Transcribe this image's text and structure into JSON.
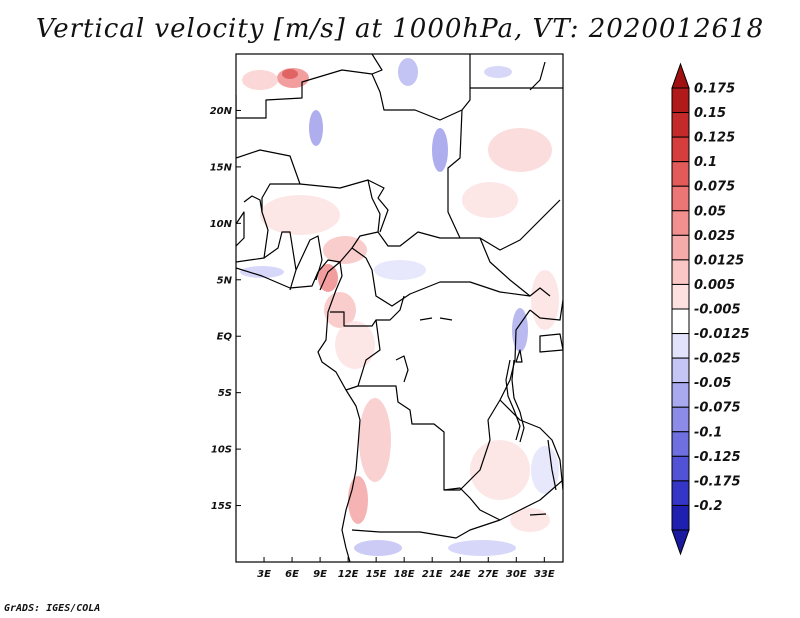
{
  "title": "Vertical velocity [m/s] at 1000hPa, VT: 2020012618",
  "footer": "GrADS: IGES/COLA",
  "map": {
    "lon_range": [
      0,
      35
    ],
    "lat_range": [
      -20,
      25
    ],
    "lat_ticks": [
      {
        "value": 20,
        "label": "20N"
      },
      {
        "value": 15,
        "label": "15N"
      },
      {
        "value": 10,
        "label": "10N"
      },
      {
        "value": 5,
        "label": "5N"
      },
      {
        "value": 0,
        "label": "EQ"
      },
      {
        "value": -5,
        "label": "5S"
      },
      {
        "value": -10,
        "label": "10S"
      },
      {
        "value": -15,
        "label": "15S"
      }
    ],
    "lon_ticks": [
      {
        "value": 3,
        "label": "3E"
      },
      {
        "value": 6,
        "label": "6E"
      },
      {
        "value": 9,
        "label": "9E"
      },
      {
        "value": 12,
        "label": "12E"
      },
      {
        "value": 15,
        "label": "15E"
      },
      {
        "value": 18,
        "label": "18E"
      },
      {
        "value": 21,
        "label": "21E"
      },
      {
        "value": 24,
        "label": "24E"
      },
      {
        "value": 27,
        "label": "27E"
      },
      {
        "value": 30,
        "label": "30E"
      },
      {
        "value": 33,
        "label": "33E"
      }
    ]
  },
  "colorbar": {
    "levels": [
      {
        "label": "0.175",
        "color": "#b11a1a"
      },
      {
        "label": "0.15",
        "color": "#c52a2a"
      },
      {
        "label": "0.125",
        "color": "#d63e3e"
      },
      {
        "label": "0.1",
        "color": "#e35a5a"
      },
      {
        "label": "0.075",
        "color": "#ec7575"
      },
      {
        "label": "0.05",
        "color": "#f29090"
      },
      {
        "label": "0.025",
        "color": "#f6abab"
      },
      {
        "label": "0.0125",
        "color": "#fac6c6"
      },
      {
        "label": "0.005",
        "color": "#fde0e0"
      },
      {
        "label": "-0.005",
        "color": "#ffffff"
      },
      {
        "label": "-0.0125",
        "color": "#e2e2fb"
      },
      {
        "label": "-0.025",
        "color": "#c6c6f6"
      },
      {
        "label": "-0.05",
        "color": "#a9a9f0"
      },
      {
        "label": "-0.075",
        "color": "#8c8ce8"
      },
      {
        "label": "-0.1",
        "color": "#6f6fe0"
      },
      {
        "label": "-0.125",
        "color": "#5252d6"
      },
      {
        "label": "-0.175",
        "color": "#3535c8"
      },
      {
        "label": "-0.2",
        "color": "#2020b0"
      }
    ],
    "top_arrow_color": "#a01010",
    "bottom_arrow_color": "#1a1aa0"
  }
}
